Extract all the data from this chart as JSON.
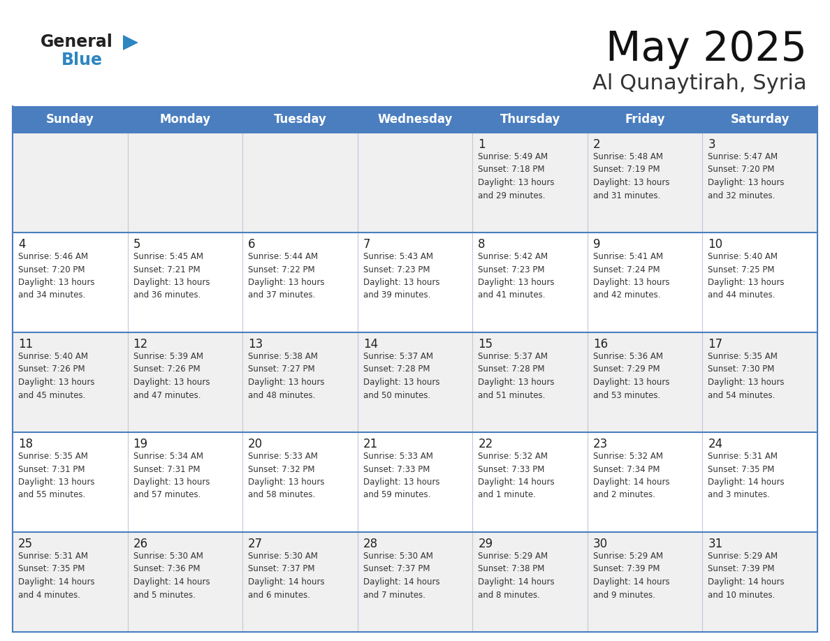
{
  "title": "May 2025",
  "subtitle": "Al Qunaytirah, Syria",
  "header_color": "#4a7ebf",
  "header_text_color": "#ffffff",
  "day_names": [
    "Sunday",
    "Monday",
    "Tuesday",
    "Wednesday",
    "Thursday",
    "Friday",
    "Saturday"
  ],
  "bg_color": "#ffffff",
  "cell_bg_white": "#ffffff",
  "cell_bg_gray": "#f0f0f0",
  "cell_border_color": "#4a7ebf",
  "inner_border_color": "#4a7ebf",
  "text_color": "#333333",
  "day_num_color": "#222222",
  "logo_general_color": "#222222",
  "logo_blue_color": "#2e86c1",
  "logo_triangle_color": "#2e86c1",
  "title_color": "#111111",
  "subtitle_color": "#333333",
  "weeks": [
    [
      {
        "day": null,
        "info": null
      },
      {
        "day": null,
        "info": null
      },
      {
        "day": null,
        "info": null
      },
      {
        "day": null,
        "info": null
      },
      {
        "day": 1,
        "info": "Sunrise: 5:49 AM\nSunset: 7:18 PM\nDaylight: 13 hours\nand 29 minutes."
      },
      {
        "day": 2,
        "info": "Sunrise: 5:48 AM\nSunset: 7:19 PM\nDaylight: 13 hours\nand 31 minutes."
      },
      {
        "day": 3,
        "info": "Sunrise: 5:47 AM\nSunset: 7:20 PM\nDaylight: 13 hours\nand 32 minutes."
      }
    ],
    [
      {
        "day": 4,
        "info": "Sunrise: 5:46 AM\nSunset: 7:20 PM\nDaylight: 13 hours\nand 34 minutes."
      },
      {
        "day": 5,
        "info": "Sunrise: 5:45 AM\nSunset: 7:21 PM\nDaylight: 13 hours\nand 36 minutes."
      },
      {
        "day": 6,
        "info": "Sunrise: 5:44 AM\nSunset: 7:22 PM\nDaylight: 13 hours\nand 37 minutes."
      },
      {
        "day": 7,
        "info": "Sunrise: 5:43 AM\nSunset: 7:23 PM\nDaylight: 13 hours\nand 39 minutes."
      },
      {
        "day": 8,
        "info": "Sunrise: 5:42 AM\nSunset: 7:23 PM\nDaylight: 13 hours\nand 41 minutes."
      },
      {
        "day": 9,
        "info": "Sunrise: 5:41 AM\nSunset: 7:24 PM\nDaylight: 13 hours\nand 42 minutes."
      },
      {
        "day": 10,
        "info": "Sunrise: 5:40 AM\nSunset: 7:25 PM\nDaylight: 13 hours\nand 44 minutes."
      }
    ],
    [
      {
        "day": 11,
        "info": "Sunrise: 5:40 AM\nSunset: 7:26 PM\nDaylight: 13 hours\nand 45 minutes."
      },
      {
        "day": 12,
        "info": "Sunrise: 5:39 AM\nSunset: 7:26 PM\nDaylight: 13 hours\nand 47 minutes."
      },
      {
        "day": 13,
        "info": "Sunrise: 5:38 AM\nSunset: 7:27 PM\nDaylight: 13 hours\nand 48 minutes."
      },
      {
        "day": 14,
        "info": "Sunrise: 5:37 AM\nSunset: 7:28 PM\nDaylight: 13 hours\nand 50 minutes."
      },
      {
        "day": 15,
        "info": "Sunrise: 5:37 AM\nSunset: 7:28 PM\nDaylight: 13 hours\nand 51 minutes."
      },
      {
        "day": 16,
        "info": "Sunrise: 5:36 AM\nSunset: 7:29 PM\nDaylight: 13 hours\nand 53 minutes."
      },
      {
        "day": 17,
        "info": "Sunrise: 5:35 AM\nSunset: 7:30 PM\nDaylight: 13 hours\nand 54 minutes."
      }
    ],
    [
      {
        "day": 18,
        "info": "Sunrise: 5:35 AM\nSunset: 7:31 PM\nDaylight: 13 hours\nand 55 minutes."
      },
      {
        "day": 19,
        "info": "Sunrise: 5:34 AM\nSunset: 7:31 PM\nDaylight: 13 hours\nand 57 minutes."
      },
      {
        "day": 20,
        "info": "Sunrise: 5:33 AM\nSunset: 7:32 PM\nDaylight: 13 hours\nand 58 minutes."
      },
      {
        "day": 21,
        "info": "Sunrise: 5:33 AM\nSunset: 7:33 PM\nDaylight: 13 hours\nand 59 minutes."
      },
      {
        "day": 22,
        "info": "Sunrise: 5:32 AM\nSunset: 7:33 PM\nDaylight: 14 hours\nand 1 minute."
      },
      {
        "day": 23,
        "info": "Sunrise: 5:32 AM\nSunset: 7:34 PM\nDaylight: 14 hours\nand 2 minutes."
      },
      {
        "day": 24,
        "info": "Sunrise: 5:31 AM\nSunset: 7:35 PM\nDaylight: 14 hours\nand 3 minutes."
      }
    ],
    [
      {
        "day": 25,
        "info": "Sunrise: 5:31 AM\nSunset: 7:35 PM\nDaylight: 14 hours\nand 4 minutes."
      },
      {
        "day": 26,
        "info": "Sunrise: 5:30 AM\nSunset: 7:36 PM\nDaylight: 14 hours\nand 5 minutes."
      },
      {
        "day": 27,
        "info": "Sunrise: 5:30 AM\nSunset: 7:37 PM\nDaylight: 14 hours\nand 6 minutes."
      },
      {
        "day": 28,
        "info": "Sunrise: 5:30 AM\nSunset: 7:37 PM\nDaylight: 14 hours\nand 7 minutes."
      },
      {
        "day": 29,
        "info": "Sunrise: 5:29 AM\nSunset: 7:38 PM\nDaylight: 14 hours\nand 8 minutes."
      },
      {
        "day": 30,
        "info": "Sunrise: 5:29 AM\nSunset: 7:39 PM\nDaylight: 14 hours\nand 9 minutes."
      },
      {
        "day": 31,
        "info": "Sunrise: 5:29 AM\nSunset: 7:39 PM\nDaylight: 14 hours\nand 10 minutes."
      }
    ]
  ]
}
